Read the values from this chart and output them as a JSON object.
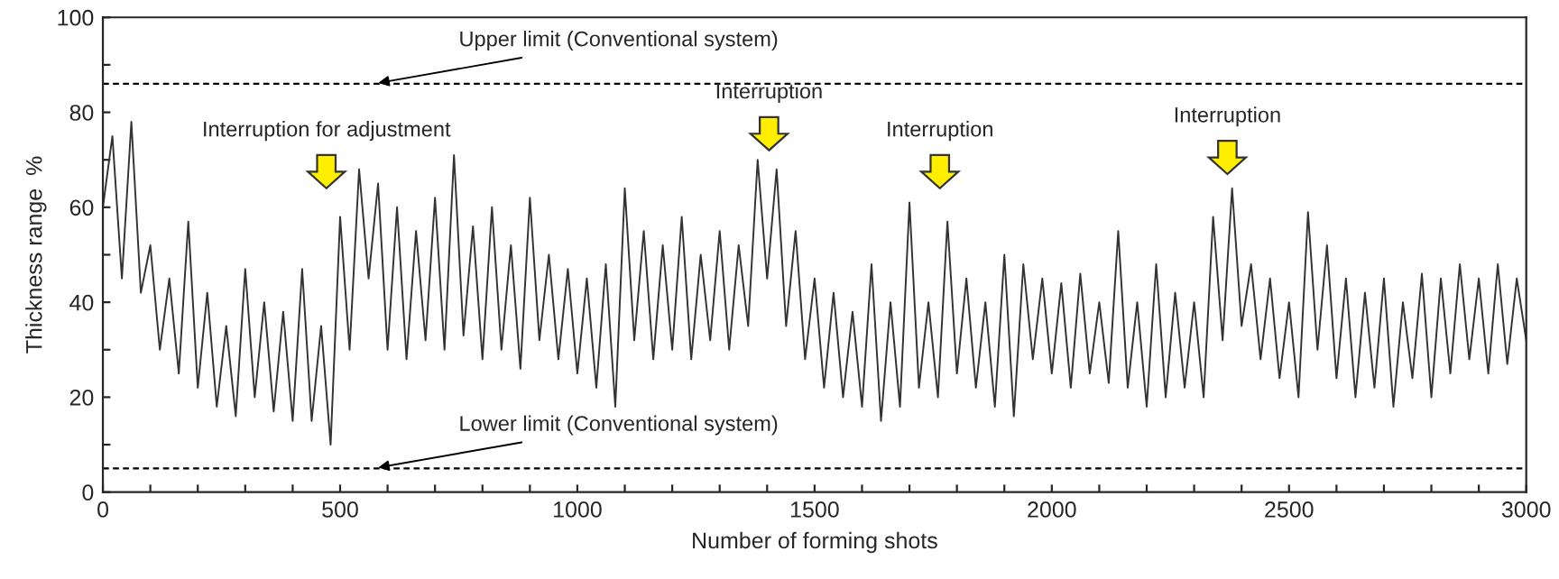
{
  "chart_data": {
    "type": "line",
    "xlabel": "Number of forming shots",
    "ylabel": "Thickness range  %",
    "xlim": [
      0,
      3000
    ],
    "ylim": [
      0,
      100
    ],
    "xticks": [
      0,
      {
        "value": 100,
        "label": null
      },
      {
        "value": 200,
        "label": null
      },
      {
        "value": 300,
        "label": null
      },
      {
        "value": 400,
        "label": null
      },
      500,
      {
        "value": 600,
        "label": null
      },
      {
        "value": 700,
        "label": null
      },
      {
        "value": 800,
        "label": null
      },
      {
        "value": 900,
        "label": null
      },
      1000,
      {
        "value": 1100,
        "label": null
      },
      {
        "value": 1200,
        "label": null
      },
      {
        "value": 1300,
        "label": null
      },
      {
        "value": 1400,
        "label": null
      },
      1500,
      {
        "value": 1600,
        "label": null
      },
      {
        "value": 1700,
        "label": null
      },
      {
        "value": 1800,
        "label": null
      },
      {
        "value": 1900,
        "label": null
      },
      2000,
      {
        "value": 2100,
        "label": null
      },
      {
        "value": 2200,
        "label": null
      },
      {
        "value": 2300,
        "label": null
      },
      {
        "value": 2400,
        "label": null
      },
      2500,
      {
        "value": 2600,
        "label": null
      },
      {
        "value": 2700,
        "label": null
      },
      {
        "value": 2800,
        "label": null
      },
      {
        "value": 2900,
        "label": null
      },
      3000
    ],
    "yticks": [
      0,
      {
        "value": 10,
        "label": null
      },
      20,
      {
        "value": 30,
        "label": null
      },
      40,
      {
        "value": 50,
        "label": null
      },
      60,
      {
        "value": 70,
        "label": null
      },
      80,
      {
        "value": 90,
        "label": null
      },
      100
    ],
    "grid": false,
    "legend": false,
    "marker": "none",
    "line_style": "solid",
    "ref_lines": [
      {
        "axis": "y",
        "value": 86,
        "label": "Upper limit (Conventional system)",
        "color": "#000000",
        "line_style": "dashed"
      },
      {
        "axis": "y",
        "value": 5,
        "label": "Lower limit (Conventional system)",
        "color": "#000000",
        "line_style": "dashed"
      }
    ],
    "annotations": [
      "Interruption for adjustment",
      "Interruption",
      "Interruption",
      "Interruption"
    ],
    "series": [
      {
        "color": "#333333",
        "x": [
          0,
          20,
          40,
          60,
          80,
          100,
          120,
          140,
          160,
          180,
          200,
          220,
          240,
          260,
          280,
          300,
          320,
          340,
          360,
          380,
          400,
          420,
          440,
          460,
          480,
          500,
          520,
          540,
          560,
          580,
          600,
          620,
          640,
          660,
          680,
          700,
          720,
          740,
          760,
          780,
          800,
          820,
          840,
          860,
          880,
          900,
          920,
          940,
          960,
          980,
          1000,
          1020,
          1040,
          1060,
          1080,
          1100,
          1120,
          1140,
          1160,
          1180,
          1200,
          1220,
          1240,
          1260,
          1280,
          1300,
          1320,
          1340,
          1360,
          1380,
          1400,
          1420,
          1440,
          1460,
          1480,
          1500,
          1520,
          1540,
          1560,
          1580,
          1600,
          1620,
          1640,
          1660,
          1680,
          1700,
          1720,
          1740,
          1760,
          1780,
          1800,
          1820,
          1840,
          1860,
          1880,
          1900,
          1920,
          1940,
          1960,
          1980,
          2000,
          2020,
          2040,
          2060,
          2080,
          2100,
          2120,
          2140,
          2160,
          2180,
          2200,
          2220,
          2240,
          2260,
          2280,
          2300,
          2320,
          2340,
          2360,
          2380,
          2400,
          2420,
          2440,
          2460,
          2480,
          2500,
          2520,
          2540,
          2560,
          2580,
          2600,
          2620,
          2640,
          2660,
          2680,
          2700,
          2720,
          2740,
          2760,
          2780,
          2800,
          2820,
          2840,
          2860,
          2880,
          2900,
          2920,
          2940,
          2960,
          2980,
          3000
        ],
        "values": [
          60,
          75,
          45,
          78,
          42,
          52,
          30,
          45,
          25,
          57,
          22,
          42,
          18,
          35,
          16,
          47,
          20,
          40,
          17,
          38,
          15,
          47,
          15,
          35,
          10,
          58,
          30,
          68,
          45,
          65,
          30,
          60,
          28,
          55,
          32,
          62,
          30,
          71,
          33,
          56,
          28,
          60,
          30,
          52,
          26,
          62,
          32,
          50,
          28,
          47,
          25,
          45,
          22,
          48,
          18,
          64,
          32,
          55,
          28,
          52,
          30,
          58,
          28,
          50,
          32,
          55,
          30,
          52,
          35,
          70,
          45,
          68,
          35,
          55,
          28,
          45,
          22,
          42,
          20,
          38,
          18,
          48,
          15,
          40,
          18,
          61,
          22,
          40,
          20,
          57,
          25,
          45,
          22,
          40,
          18,
          50,
          16,
          48,
          28,
          45,
          25,
          44,
          22,
          46,
          25,
          40,
          23,
          55,
          22,
          40,
          18,
          48,
          20,
          42,
          22,
          40,
          20,
          58,
          32,
          64,
          35,
          48,
          28,
          45,
          24,
          40,
          20,
          59,
          30,
          52,
          24,
          45,
          20,
          42,
          22,
          45,
          18,
          40,
          24,
          46,
          20,
          45,
          25,
          48,
          28,
          45,
          25,
          48,
          27,
          45,
          32
        ]
      }
    ]
  }
}
